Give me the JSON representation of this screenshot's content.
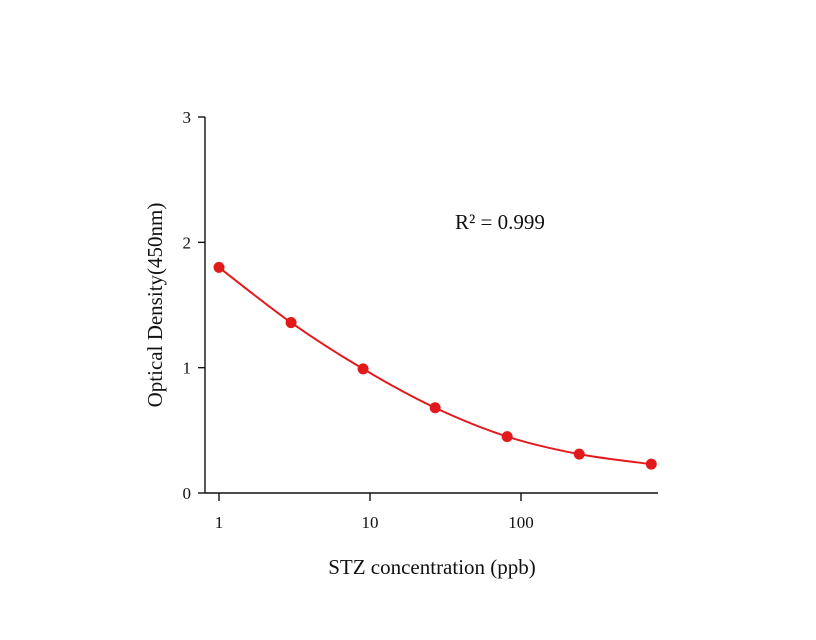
{
  "chart_data": {
    "type": "scatter",
    "title": "",
    "xlabel": "STZ concentration (ppb)",
    "ylabel": "Optical Density(450nm)",
    "x_scale": "log",
    "xlim": [
      0.8,
      800
    ],
    "ylim": [
      0,
      3
    ],
    "x_ticks": [
      1,
      10,
      100
    ],
    "x_tick_labels": [
      "1",
      "10",
      "100"
    ],
    "y_ticks": [
      0,
      1,
      2,
      3
    ],
    "y_tick_labels": [
      "0",
      "1",
      "2",
      "3"
    ],
    "grid": false,
    "legend": "none",
    "series": [
      {
        "x": [
          1,
          3,
          9,
          27,
          81,
          243,
          729
        ],
        "y": [
          1.8,
          1.36,
          0.99,
          0.68,
          0.45,
          0.31,
          0.23
        ],
        "color": "#e31a1c",
        "fit_curve": true
      }
    ],
    "annotations": [
      {
        "text": "R² = 0.999"
      }
    ]
  }
}
